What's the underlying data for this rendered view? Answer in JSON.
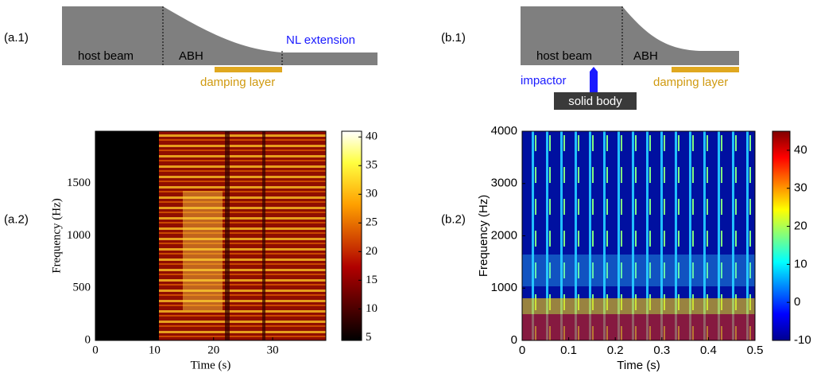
{
  "diagrams": [
    {
      "panel": "(a.1)",
      "host": "host beam",
      "abh": "ABH",
      "extension": "NL extension",
      "damping": "damping layer"
    },
    {
      "panel": "(b.1)",
      "host": "host beam",
      "abh": "ABH",
      "impactor": "impactor",
      "solid": "solid body",
      "damping": "damping layer"
    }
  ],
  "chart_data": [
    {
      "type": "heatmap",
      "panel": "(a.2)",
      "x_label": "Time (s)",
      "y_label": "Frequency (Hz)",
      "xlim": [
        0,
        39
      ],
      "xticks": [
        0,
        10,
        20,
        30
      ],
      "ylim": [
        0,
        2000
      ],
      "yticks": [
        0,
        500,
        1000,
        1500
      ],
      "colormap": "hot",
      "colorbar_lim": [
        4.5,
        41
      ],
      "colorbar_ticks": [
        5,
        10,
        15,
        20,
        25,
        30,
        35,
        40
      ]
    },
    {
      "type": "heatmap",
      "panel": "(b.2)",
      "x_label": "Time (s)",
      "y_label": "Frequency (Hz)",
      "xlim": [
        0,
        0.5
      ],
      "xticks": [
        0,
        0.1,
        0.2,
        0.3,
        0.4,
        0.5
      ],
      "ylim": [
        0,
        4000
      ],
      "yticks": [
        0,
        1000,
        2000,
        3000,
        4000
      ],
      "colormap": "jet",
      "colorbar_lim": [
        -10,
        45
      ],
      "colorbar_ticks": [
        -10,
        0,
        10,
        20,
        30,
        40
      ]
    }
  ]
}
